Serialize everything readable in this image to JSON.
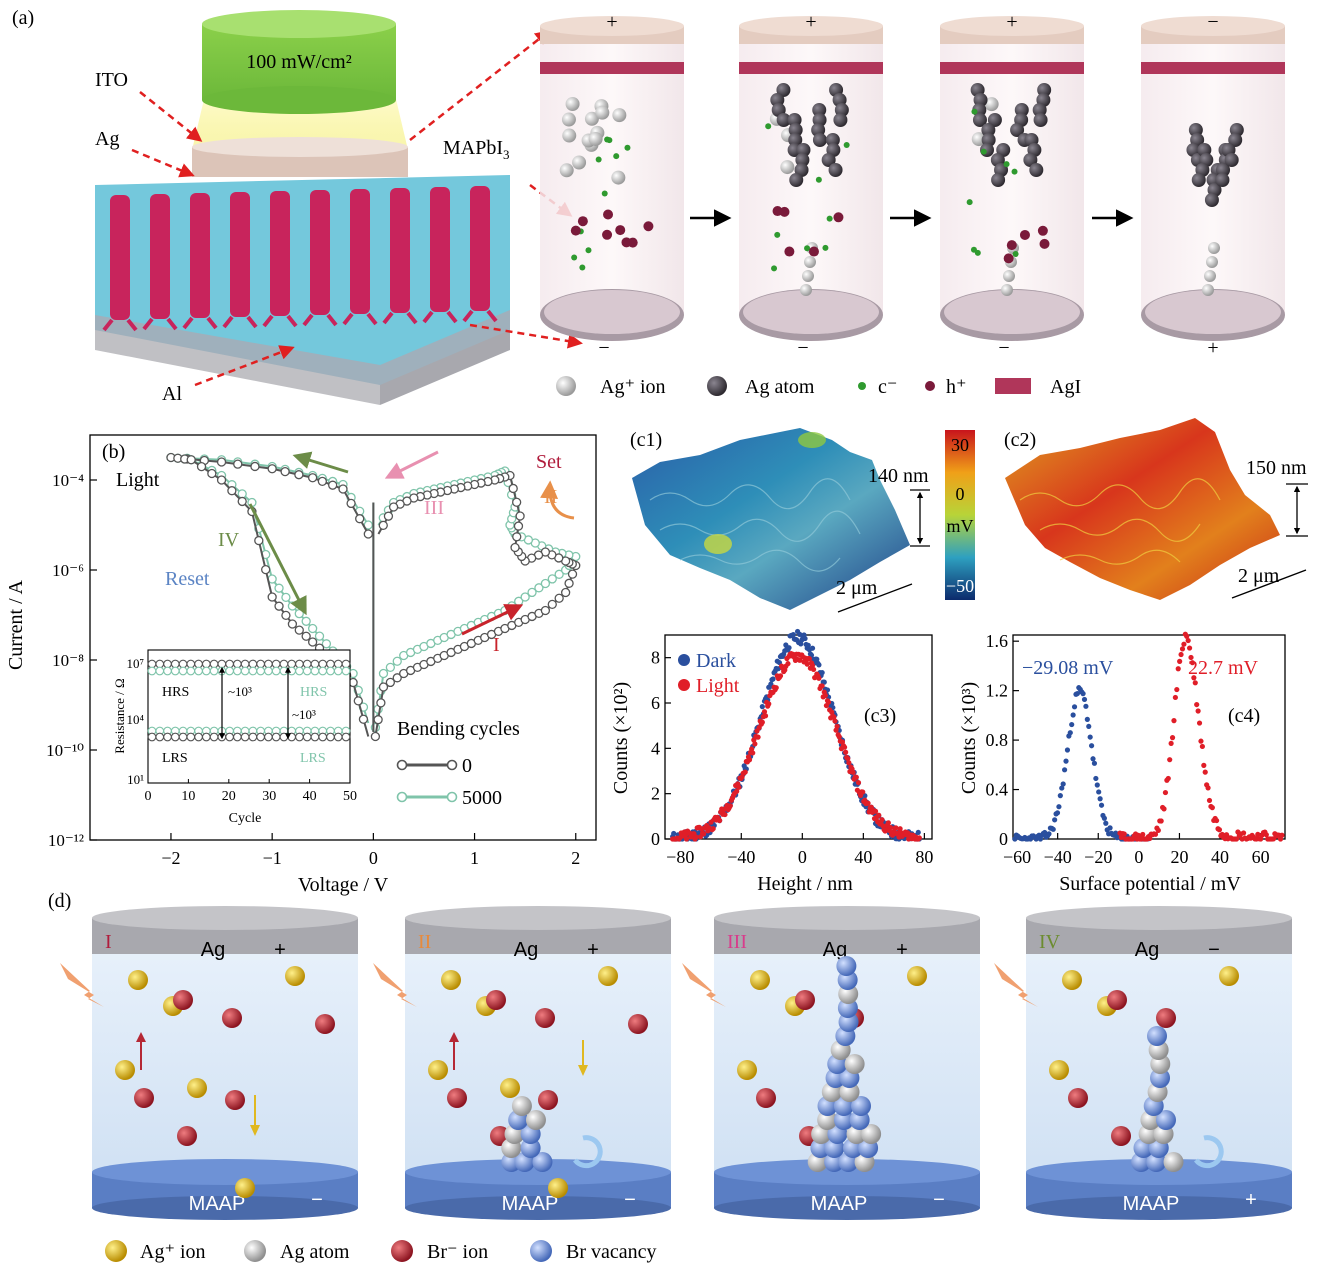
{
  "panel_a": {
    "label": "(a)",
    "light_text": "100 mW/cm²",
    "labels": {
      "ito": "ITO",
      "ag": "Ag",
      "al": "Al",
      "mapbi": "MAPbI",
      "mapbi_sub": "3"
    },
    "cells": [
      {
        "top": "+",
        "bottom": "−"
      },
      {
        "top": "+",
        "bottom": "−"
      },
      {
        "top": "+",
        "bottom": "−"
      },
      {
        "top": "−",
        "bottom": "+"
      }
    ],
    "legend": [
      {
        "symbol": "ag-ion",
        "text": "Ag⁺ ion",
        "color": "#d8d8d8"
      },
      {
        "symbol": "ag-atom",
        "text": "Ag atom",
        "color": "#555058"
      },
      {
        "symbol": "electron",
        "text": "c⁻",
        "color": "#2f9a2f"
      },
      {
        "symbol": "hole",
        "text": "h⁺",
        "color": "#7a1a3a"
      },
      {
        "symbol": "agi",
        "text": "AgI",
        "color": "#b0365a"
      }
    ]
  },
  "panel_b": {
    "label": "(b)",
    "annotations": {
      "light": "Light",
      "reset": "Reset",
      "set": "Set",
      "I": "I",
      "II": "II",
      "III": "III",
      "IV": "IV"
    },
    "legend_title": "Bending cycles",
    "inset": {
      "xlabel": "Cycle",
      "ylabel": "Resistance / Ω",
      "xticks": [
        "0",
        "10",
        "20",
        "30",
        "40",
        "50"
      ],
      "yticks": [
        "10⁷",
        "10⁴",
        "10¹"
      ],
      "hrs": "HRS",
      "lrs": "LRS",
      "ratio": "~10³"
    },
    "chart_data": {
      "type": "line",
      "xlabel": "Voltage / V",
      "ylabel": "Current / A",
      "xlim": [
        -2.8,
        2.2
      ],
      "ylim_log10": [
        -12,
        -3
      ],
      "xticks": [
        "−2",
        "−1",
        "0",
        "1",
        "2"
      ],
      "yticks": [
        "10⁻¹²",
        "10⁻¹⁰",
        "10⁻⁸",
        "10⁻⁶",
        "10⁻⁴"
      ],
      "series": [
        {
          "name": "0",
          "color": "#555555",
          "forward_x": [
            0.02,
            0.1,
            0.3,
            0.5,
            0.7,
            0.9,
            1.1,
            1.3,
            1.5,
            1.7,
            1.9,
            2.0
          ],
          "forward_log10": [
            -9.7,
            -8.6,
            -8.3,
            -8.1,
            -7.9,
            -7.7,
            -7.5,
            -7.3,
            -7.1,
            -6.9,
            -6.5,
            -5.9
          ],
          "loop_x": [
            2.0,
            1.9,
            1.7,
            1.5,
            1.4,
            1.45,
            1.35,
            1.2,
            1.0,
            0.8,
            0.6,
            0.4,
            0.2,
            0.05
          ],
          "loop_log10": [
            -5.9,
            -5.8,
            -5.6,
            -5.8,
            -5.5,
            -4.8,
            -3.9,
            -4.0,
            -4.1,
            -4.2,
            -4.3,
            -4.4,
            -4.6,
            -5.2
          ],
          "reverse_x": [
            -0.05,
            -0.3,
            -0.6,
            -1.0,
            -1.5,
            -2.0,
            -1.8,
            -1.5,
            -1.2,
            -1.0,
            -0.8,
            -0.6,
            -0.4,
            -0.2,
            -0.05
          ],
          "reverse_log10": [
            -5.2,
            -4.2,
            -3.95,
            -3.75,
            -3.6,
            -3.5,
            -3.55,
            -4.0,
            -4.7,
            -6.6,
            -7.2,
            -7.6,
            -8.0,
            -8.5,
            -9.7
          ]
        },
        {
          "name": "5000",
          "color": "#7fc4aa",
          "forward_x": [
            0.02,
            0.1,
            0.3,
            0.5,
            0.7,
            0.9,
            1.1,
            1.3,
            1.5,
            1.7,
            1.9,
            2.0
          ],
          "forward_log10": [
            -9.5,
            -8.3,
            -7.9,
            -7.7,
            -7.5,
            -7.3,
            -7.1,
            -6.9,
            -6.6,
            -6.3,
            -6.0,
            -5.7
          ],
          "loop_x": [
            2.0,
            1.8,
            1.6,
            1.4,
            1.35,
            1.4,
            1.3,
            1.2,
            1.0,
            0.8,
            0.6,
            0.4,
            0.2,
            0.05
          ],
          "loop_log10": [
            -5.7,
            -5.6,
            -5.4,
            -5.2,
            -5.0,
            -4.6,
            -3.8,
            -3.9,
            -4.0,
            -4.1,
            -4.2,
            -4.3,
            -4.5,
            -5.0
          ],
          "reverse_x": [
            -0.05,
            -0.3,
            -0.6,
            -1.0,
            -1.5,
            -2.0,
            -1.8,
            -1.5,
            -1.2,
            -1.0,
            -0.8,
            -0.6,
            -0.4,
            -0.2,
            -0.05
          ],
          "reverse_log10": [
            -5.0,
            -4.1,
            -3.9,
            -3.7,
            -3.55,
            -3.5,
            -3.55,
            -3.9,
            -4.5,
            -6.2,
            -6.8,
            -7.3,
            -7.8,
            -8.3,
            -9.4
          ]
        }
      ]
    }
  },
  "panel_c1": {
    "label": "(c1)",
    "height": "140 nm",
    "scale": "2 μm",
    "colorbar": {
      "ticks": [
        "30",
        "0",
        "−50"
      ],
      "unit": "mV"
    }
  },
  "panel_c2": {
    "label": "(c2)",
    "height": "150 nm",
    "scale": "2 μm"
  },
  "panel_c3": {
    "label": "(c3)",
    "chart_data": {
      "type": "scatter",
      "xlabel": "Height / nm",
      "ylabel": "Counts (×10²)",
      "xlim": [
        -90,
        85
      ],
      "ylim": [
        0,
        9
      ],
      "xticks": [
        -80,
        -40,
        0,
        40,
        80
      ],
      "yticks": [
        0,
        2,
        4,
        6,
        8
      ],
      "series": [
        {
          "name": "Dark",
          "color": "#2a4f9e",
          "center": -3,
          "peak": 8.9,
          "sigma": 24
        },
        {
          "name": "Light",
          "color": "#e01e28",
          "center": -3,
          "peak": 8.1,
          "sigma": 25
        }
      ]
    }
  },
  "panel_c4": {
    "label": "(c4)",
    "peak_labels": [
      "−29.08 mV",
      "22.7 mV"
    ],
    "chart_data": {
      "type": "scatter",
      "xlabel": "Surface potential / mV",
      "ylabel": "Counts (×10³)",
      "xlim": [
        -62,
        72
      ],
      "ylim": [
        0,
        1.65
      ],
      "xticks": [
        -60,
        -40,
        -20,
        0,
        20,
        40,
        60
      ],
      "yticks": [
        "0",
        "0.4",
        "0.8",
        "1.2",
        "1.6"
      ],
      "series": [
        {
          "name": "Dark",
          "color": "#2a4f9e",
          "center": -29.08,
          "peak": 1.2,
          "sigma": 6
        },
        {
          "name": "Light",
          "color": "#e01e28",
          "center": 22.7,
          "peak": 1.6,
          "sigma": 5.5
        }
      ]
    }
  },
  "panel_d": {
    "label": "(d)",
    "cells": [
      {
        "stage": "I",
        "stage_color": "#b01c3c",
        "top_text": "Ag",
        "top_sign": "+",
        "bottom_text": "MAAP",
        "bottom_sign": "−"
      },
      {
        "stage": "II",
        "stage_color": "#e88a3c",
        "top_text": "Ag",
        "top_sign": "+",
        "bottom_text": "MAAP",
        "bottom_sign": "−"
      },
      {
        "stage": "III",
        "stage_color": "#d83c8c",
        "top_text": "Ag",
        "top_sign": "+",
        "bottom_text": "MAAP",
        "bottom_sign": "−"
      },
      {
        "stage": "IV",
        "stage_color": "#6c8c30",
        "top_text": "Ag",
        "top_sign": "−",
        "bottom_text": "MAAP",
        "bottom_sign": "+"
      }
    ],
    "legend": [
      {
        "text": "Ag⁺ ion",
        "color": "#e0b820"
      },
      {
        "text": "Ag atom",
        "color": "#bcbcbc"
      },
      {
        "text": "Br⁻ ion",
        "color": "#b52835"
      },
      {
        "text": "Br vacancy",
        "color": "#6f93d8"
      }
    ]
  }
}
